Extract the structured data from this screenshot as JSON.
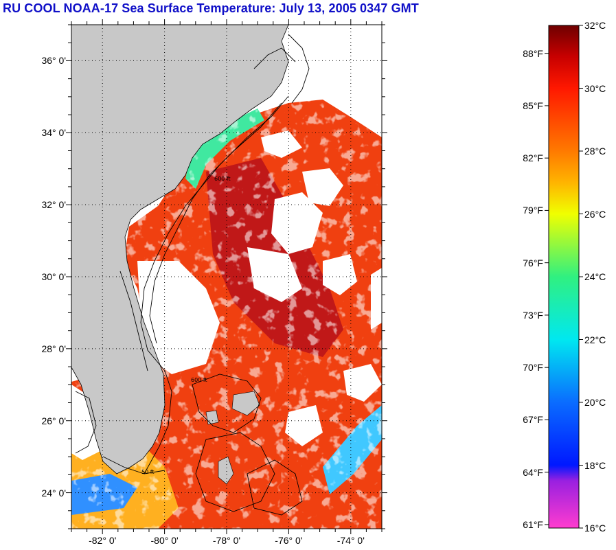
{
  "title": "RU COOL  NOAA-17  Sea Surface Temperature:  July 13, 2005 0347 GMT",
  "map": {
    "lon_range": [
      -83.0,
      -73.0
    ],
    "lat_range": [
      23.0,
      37.0
    ],
    "lat_ticks": [
      {
        "value": 24,
        "label": "24° 0'"
      },
      {
        "value": 26,
        "label": "26° 0'"
      },
      {
        "value": 28,
        "label": "28° 0'"
      },
      {
        "value": 30,
        "label": "30° 0'"
      },
      {
        "value": 32,
        "label": "32° 0'"
      },
      {
        "value": 34,
        "label": "34° 0'"
      },
      {
        "value": 36,
        "label": "36° 0'"
      }
    ],
    "lon_ticks": [
      {
        "value": -82,
        "label": "-82° 0'"
      },
      {
        "value": -80,
        "label": "-80° 0'"
      },
      {
        "value": -78,
        "label": "-78° 0'"
      },
      {
        "value": -76,
        "label": "-76° 0'"
      },
      {
        "value": -74,
        "label": "-74° 0'"
      }
    ],
    "grid": "dotted",
    "colors": {
      "land": "#c8c8c8",
      "cloud": "#ffffff",
      "warm_sst": "#f04010",
      "hot_sst": "#c01818",
      "contour": "#000000"
    },
    "contour_labels": [
      "50 ft",
      "600 ft",
      "600 ft"
    ]
  },
  "colorbar": {
    "celsius_range": [
      16,
      32
    ],
    "celsius_ticks": [
      {
        "value": 32,
        "label": "32°C"
      },
      {
        "value": 30,
        "label": "30°C"
      },
      {
        "value": 28,
        "label": "28°C"
      },
      {
        "value": 26,
        "label": "26°C"
      },
      {
        "value": 24,
        "label": "24°C"
      },
      {
        "value": 22,
        "label": "22°C"
      },
      {
        "value": 20,
        "label": "20°C"
      },
      {
        "value": 18,
        "label": "18°C"
      },
      {
        "value": 16,
        "label": "16°C"
      }
    ],
    "fahrenheit_ticks": [
      {
        "value": 88,
        "label": "88°F"
      },
      {
        "value": 85,
        "label": "85°F"
      },
      {
        "value": 82,
        "label": "82°F"
      },
      {
        "value": 79,
        "label": "79°F"
      },
      {
        "value": 76,
        "label": "76°F"
      },
      {
        "value": 73,
        "label": "73°F"
      },
      {
        "value": 70,
        "label": "70°F"
      },
      {
        "value": 67,
        "label": "67°F"
      },
      {
        "value": 64,
        "label": "64°F"
      },
      {
        "value": 61,
        "label": "61°F"
      }
    ],
    "color_stops": [
      {
        "c": 16,
        "color": "#ff3ccf"
      },
      {
        "c": 17.5,
        "color": "#9a20e0"
      },
      {
        "c": 18,
        "color": "#0018ff"
      },
      {
        "c": 20,
        "color": "#0a6cff"
      },
      {
        "c": 22,
        "color": "#00e8f0"
      },
      {
        "c": 24,
        "color": "#30f080"
      },
      {
        "c": 26,
        "color": "#f0ff00"
      },
      {
        "c": 27,
        "color": "#ffb400"
      },
      {
        "c": 28,
        "color": "#ff7a00"
      },
      {
        "c": 30,
        "color": "#ff1800"
      },
      {
        "c": 31,
        "color": "#c80000"
      },
      {
        "c": 32,
        "color": "#6e0000"
      }
    ]
  }
}
